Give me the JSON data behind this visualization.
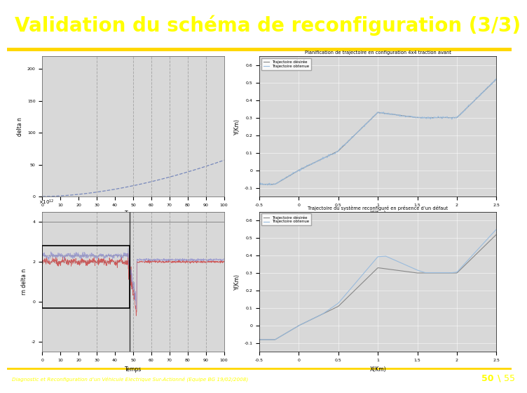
{
  "title": "Validation du schéma de reconfiguration (3/3)",
  "title_color": "#FFFF00",
  "title_bg_color": "#1a1a7e",
  "title_fontsize": 20,
  "bg_color": "#ffffff",
  "footer_text": "Diagnostic et Reconfiguration d’un Véhicule Electrique Sur-Actionné (Equipe BG 19/02/2008)",
  "footer_right": "50\\55",
  "footer_color": "#FFFF00",
  "footer_bg": "#000080",
  "plot3_title": "Planification de trajectoire en configuration 4x4 traction avant",
  "plot4_title": "Trajectoire du système reconfiguré en présence d’un défaut",
  "plot3_legend": [
    "Trajectoire désirée",
    "Trajectoire obtenue"
  ],
  "plot4_legend": [
    "Trajectoire désirée",
    "Trajectoire obtenue"
  ],
  "axes_bg": "#d8d8d8"
}
